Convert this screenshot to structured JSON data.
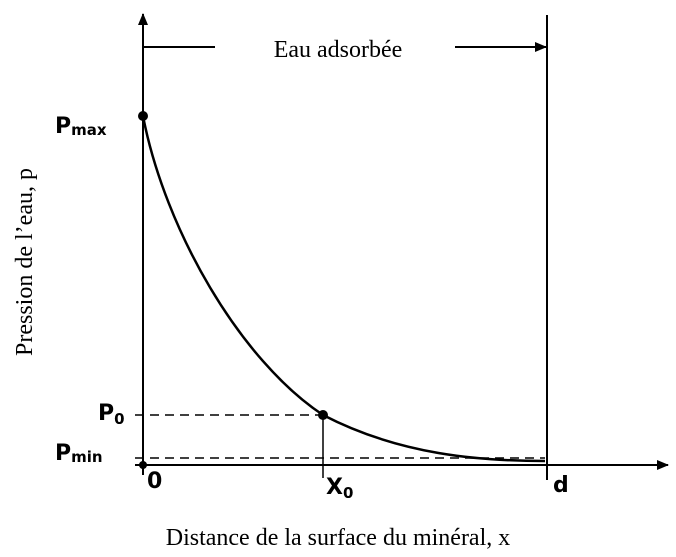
{
  "title": "Eau adsorbée",
  "y_axis_label": "Pression de l’eau, p",
  "x_axis_label": "Distance de la surface du minéral, x",
  "labels": {
    "p_max": {
      "main": "P",
      "sub": "max"
    },
    "p_0": {
      "main": "P",
      "sub": "0"
    },
    "p_min": {
      "main": "P",
      "sub": "min"
    },
    "origin": "0",
    "x_0": {
      "main": "X",
      "sub": "0"
    },
    "d": "d"
  }
}
